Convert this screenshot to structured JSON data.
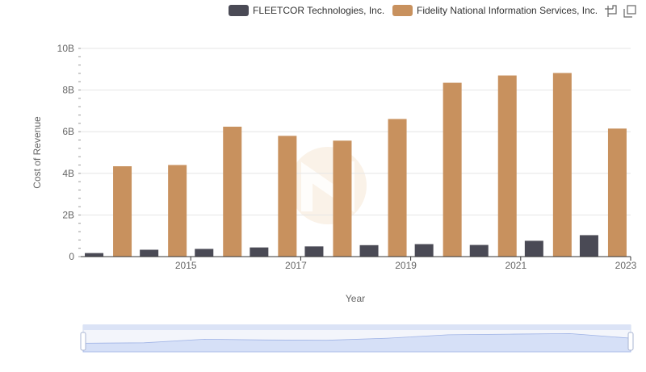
{
  "chart_data": {
    "type": "bar",
    "xlabel": "Year",
    "ylabel": "Cost of Revenue",
    "x": [
      2014,
      2015,
      2016,
      2017,
      2018,
      2019,
      2020,
      2021,
      2022,
      2023
    ],
    "x_tick_labels": [
      "2015",
      "2017",
      "2019",
      "2021",
      "2023"
    ],
    "x_tick_values": [
      2015,
      2017,
      2019,
      2021,
      2023
    ],
    "ylim": [
      0,
      10000000000
    ],
    "y_tick_values": [
      0,
      2000000000,
      4000000000,
      6000000000,
      8000000000,
      10000000000
    ],
    "y_tick_labels": [
      "0",
      "2B",
      "4B",
      "6B",
      "8B",
      "10B"
    ],
    "grid": true,
    "legend_position": "top-right",
    "series": [
      {
        "name": "FLEETCOR Technologies, Inc.",
        "color": "#4a4a55",
        "values": [
          170000000,
          330000000,
          370000000,
          440000000,
          490000000,
          550000000,
          600000000,
          560000000,
          760000000,
          1030000000
        ]
      },
      {
        "name": "Fidelity National Information Services, Inc.",
        "color": "#c8915e",
        "values": [
          4340000000,
          4400000000,
          6240000000,
          5800000000,
          5570000000,
          6610000000,
          8350000000,
          8700000000,
          8820000000,
          6150000000
        ]
      }
    ]
  },
  "toolbox": {
    "icons": [
      "zoom-icon",
      "restore-icon"
    ]
  }
}
